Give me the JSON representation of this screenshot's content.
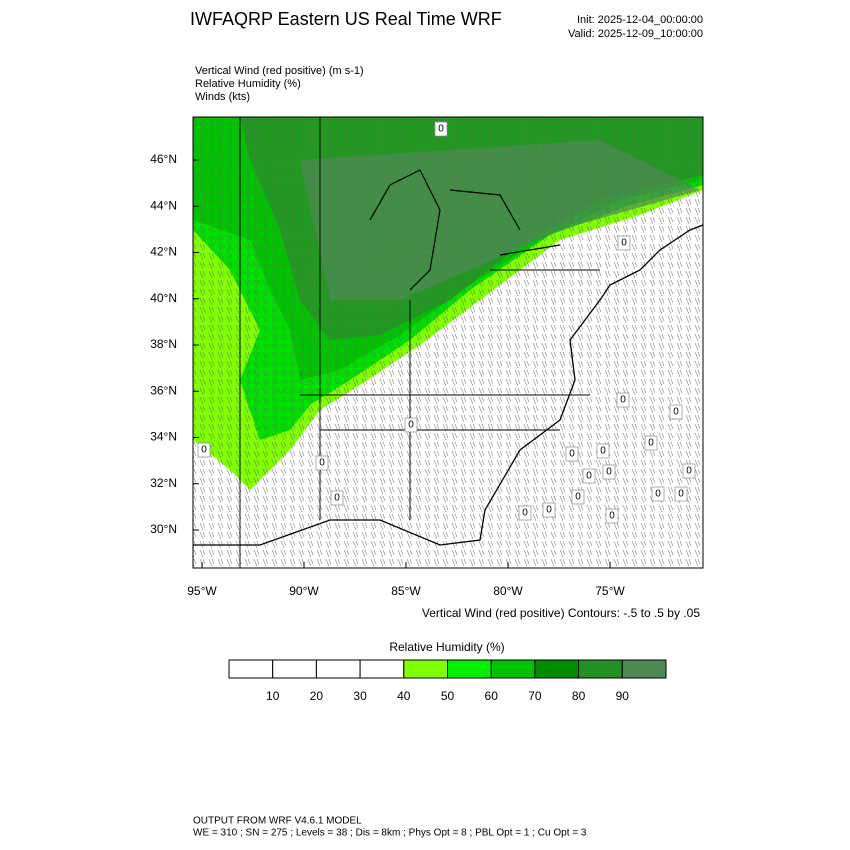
{
  "header": {
    "title": "IWFAQRP Eastern US Real Time WRF",
    "init": "Init: 2025-12-04_00:00:00",
    "valid": "Valid: 2025-12-09_10:00:00"
  },
  "fields": [
    "Vertical Wind (red positive)   (m s-1)",
    "Relative Humidity   (%)",
    "Winds   (kts)"
  ],
  "map": {
    "lat_labels": [
      "46°N",
      "44°N",
      "42°N",
      "40°N",
      "38°N",
      "36°N",
      "34°N",
      "32°N",
      "30°N"
    ],
    "lon_labels": [
      "95°W",
      "90°W",
      "85°W",
      "80°W",
      "75°W"
    ],
    "contour_labels": [
      "0",
      "0",
      "0",
      "0",
      "0",
      "0",
      "0",
      "0",
      "0",
      "0",
      "0",
      "0",
      "0",
      "0",
      "0",
      "0",
      "0",
      "0",
      "0",
      "0"
    ],
    "contour_note": "Vertical Wind (red positive) Contours: -.5 to .5 by .05"
  },
  "colorbar": {
    "title": "Relative Humidity  (%)",
    "labels": [
      10,
      20,
      30,
      40,
      50,
      60,
      70,
      80,
      90
    ],
    "colors": [
      "#ffffff",
      "#ffffff",
      "#ffffff",
      "#ffffff",
      "#80ff00",
      "#00f000",
      "#00c400",
      "#008c00",
      "#239023",
      "#4f8a55"
    ]
  },
  "footer": [
    "OUTPUT FROM WRF V4.6.1 MODEL",
    "WE = 310 ; SN = 275 ; Levels = 38 ; Dis = 8km ; Phys Opt = 8 ; PBL Opt = 1 ; Cu Opt = 3"
  ]
}
